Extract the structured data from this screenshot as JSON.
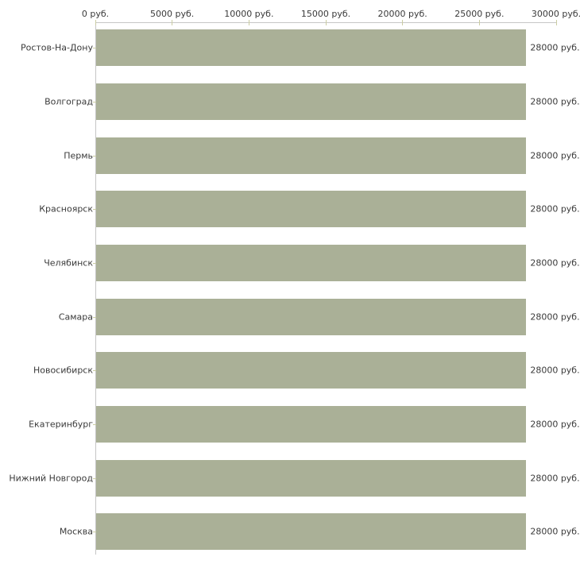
{
  "chart_data": {
    "type": "bar",
    "orientation": "horizontal",
    "title": "",
    "xlabel": "",
    "ylabel": "",
    "unit": "руб.",
    "categories": [
      "Ростов-На-Дону",
      "Волгоград",
      "Пермь",
      "Красноярск",
      "Челябинск",
      "Самара",
      "Новосибирск",
      "Екатеринбург",
      "Нижний Новгород",
      "Москва"
    ],
    "values": [
      28000,
      28000,
      28000,
      28000,
      28000,
      28000,
      28000,
      28000,
      28000,
      28000
    ],
    "value_labels": [
      "28000 руб.",
      "28000 руб.",
      "28000 руб.",
      "28000 руб.",
      "28000 руб.",
      "28000 руб.",
      "28000 руб.",
      "28000 руб.",
      "28000 руб.",
      "28000 руб."
    ],
    "x_axis": {
      "position": "top",
      "min": 0,
      "max": 30000,
      "ticks": [
        0,
        5000,
        10000,
        15000,
        20000,
        25000,
        30000
      ],
      "tick_labels": [
        "0 руб.",
        "5000 руб.",
        "10000 руб.",
        "15000 руб.",
        "20000 руб.",
        "25000 руб.",
        "30000 руб."
      ]
    },
    "grid": false,
    "legend": false,
    "colors": {
      "bar": "#aab097",
      "axis_line": "#c6c6c6",
      "tick_mark": "#cbcda3",
      "text": "#3a3a3a",
      "background": "#ffffff"
    }
  }
}
